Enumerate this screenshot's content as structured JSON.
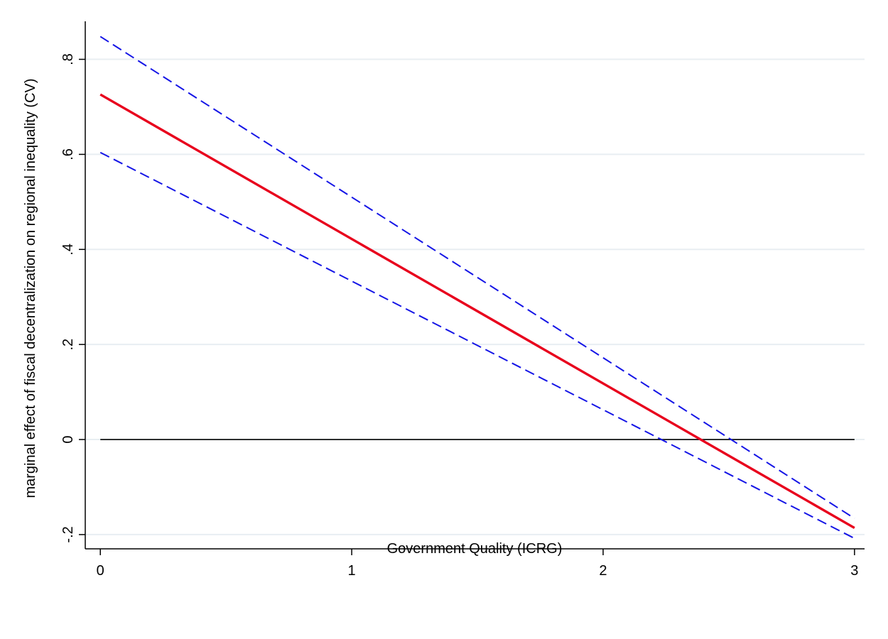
{
  "chart_data": {
    "type": "line",
    "title": "",
    "xlabel": "Government Quality (ICRG)",
    "ylabel": "marginal effect of fiscal decentralization on regional inequality (CV)",
    "xlim": [
      -0.06,
      3.04
    ],
    "ylim": [
      -0.23,
      0.88
    ],
    "x_ticks": [
      0,
      1,
      2,
      3
    ],
    "x_tick_labels": [
      "0",
      "1",
      "2",
      "3"
    ],
    "y_ticks": [
      -0.2,
      0,
      0.2,
      0.4,
      0.6,
      0.8
    ],
    "y_tick_labels": [
      "-.2",
      "0",
      ".2",
      ".4",
      ".6",
      ".8"
    ],
    "grid": "horizontal",
    "legend": "none",
    "series": [
      {
        "style": "solid",
        "color": "#e8001c",
        "x": [
          0,
          3
        ],
        "y": [
          0.726,
          -0.186
        ]
      },
      {
        "style": "dashed",
        "color": "#1515e6",
        "x": [
          0,
          3
        ],
        "y": [
          0.848,
          -0.166
        ]
      },
      {
        "style": "dashed",
        "color": "#1515e6",
        "x": [
          0,
          3
        ],
        "y": [
          0.604,
          -0.208
        ]
      }
    ],
    "reference_lines": [
      {
        "y": 0,
        "x": [
          0,
          3
        ],
        "color": "#000000"
      }
    ]
  }
}
